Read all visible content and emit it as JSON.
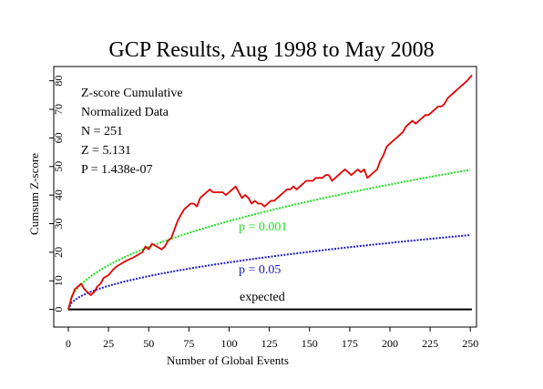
{
  "chart_data": {
    "type": "line",
    "title": "GCP Results, Aug 1998 to May 2008",
    "xlabel": "Number of Global Events",
    "ylabel": "Cumsum Z-score",
    "xlim": [
      0,
      251
    ],
    "ylim": [
      -3,
      85
    ],
    "x_ticks": [
      "0",
      "25",
      "50",
      "75",
      "100",
      "125",
      "150",
      "175",
      "200",
      "225",
      "250"
    ],
    "y_ticks": [
      "0",
      "10",
      "20",
      "30",
      "40",
      "50",
      "60",
      "70",
      "80"
    ],
    "grid": false,
    "stats": [
      "Z-score Cumulative",
      "Normalized Data",
      "N = 251",
      "Z = 5.131",
      "P = 1.438e-07"
    ],
    "annotations": {
      "p001": "p = 0.001",
      "p05": "p = 0.05",
      "expected": "expected"
    },
    "colors": {
      "cumulative": "#e00000",
      "p001": "#22dd22",
      "p05": "#1818c8",
      "expected": "#000000"
    },
    "series": [
      {
        "style": "solid",
        "color": "#e00000",
        "points": [
          [
            0,
            0
          ],
          [
            2,
            4
          ],
          [
            4,
            7
          ],
          [
            6,
            8
          ],
          [
            8,
            9
          ],
          [
            10,
            7
          ],
          [
            12,
            6
          ],
          [
            14,
            5
          ],
          [
            16,
            6
          ],
          [
            18,
            8
          ],
          [
            20,
            9
          ],
          [
            22,
            11
          ],
          [
            25,
            12
          ],
          [
            28,
            14
          ],
          [
            30,
            15
          ],
          [
            33,
            16
          ],
          [
            36,
            17
          ],
          [
            40,
            18
          ],
          [
            43,
            19
          ],
          [
            46,
            20
          ],
          [
            48,
            22
          ],
          [
            50,
            21
          ],
          [
            52,
            23
          ],
          [
            55,
            22
          ],
          [
            58,
            21
          ],
          [
            60,
            22
          ],
          [
            62,
            24
          ],
          [
            64,
            25
          ],
          [
            66,
            28
          ],
          [
            68,
            31
          ],
          [
            70,
            33
          ],
          [
            72,
            35
          ],
          [
            74,
            36
          ],
          [
            76,
            37
          ],
          [
            78,
            37
          ],
          [
            80,
            36
          ],
          [
            82,
            39
          ],
          [
            84,
            40
          ],
          [
            86,
            41
          ],
          [
            88,
            42
          ],
          [
            90,
            41
          ],
          [
            92,
            41
          ],
          [
            94,
            41
          ],
          [
            96,
            41
          ],
          [
            98,
            40
          ],
          [
            100,
            41
          ],
          [
            102,
            42
          ],
          [
            104,
            43
          ],
          [
            106,
            41
          ],
          [
            108,
            39
          ],
          [
            110,
            40
          ],
          [
            112,
            39
          ],
          [
            114,
            37
          ],
          [
            116,
            38
          ],
          [
            118,
            37
          ],
          [
            120,
            37
          ],
          [
            122,
            36
          ],
          [
            124,
            37
          ],
          [
            126,
            38
          ],
          [
            128,
            38
          ],
          [
            130,
            39
          ],
          [
            132,
            40
          ],
          [
            134,
            41
          ],
          [
            136,
            42
          ],
          [
            138,
            42
          ],
          [
            140,
            43
          ],
          [
            142,
            42
          ],
          [
            144,
            43
          ],
          [
            146,
            44
          ],
          [
            148,
            45
          ],
          [
            150,
            45
          ],
          [
            152,
            45
          ],
          [
            154,
            46
          ],
          [
            156,
            46
          ],
          [
            158,
            46
          ],
          [
            160,
            47
          ],
          [
            162,
            47
          ],
          [
            164,
            45
          ],
          [
            166,
            46
          ],
          [
            168,
            47
          ],
          [
            170,
            48
          ],
          [
            172,
            49
          ],
          [
            174,
            48
          ],
          [
            176,
            47
          ],
          [
            178,
            48
          ],
          [
            180,
            49
          ],
          [
            182,
            48
          ],
          [
            184,
            49
          ],
          [
            186,
            46
          ],
          [
            188,
            47
          ],
          [
            190,
            48
          ],
          [
            192,
            49
          ],
          [
            194,
            52
          ],
          [
            196,
            54
          ],
          [
            198,
            57
          ],
          [
            200,
            58
          ],
          [
            202,
            59
          ],
          [
            204,
            60
          ],
          [
            206,
            61
          ],
          [
            208,
            62
          ],
          [
            210,
            64
          ],
          [
            212,
            65
          ],
          [
            214,
            66
          ],
          [
            216,
            65
          ],
          [
            218,
            66
          ],
          [
            220,
            67
          ],
          [
            222,
            68
          ],
          [
            224,
            68
          ],
          [
            226,
            69
          ],
          [
            228,
            70
          ],
          [
            230,
            71
          ],
          [
            232,
            71
          ],
          [
            234,
            72
          ],
          [
            236,
            74
          ],
          [
            238,
            75
          ],
          [
            240,
            76
          ],
          [
            242,
            77
          ],
          [
            244,
            78
          ],
          [
            246,
            79
          ],
          [
            248,
            80
          ],
          [
            251,
            82
          ]
        ]
      },
      {
        "name": "p = 0.001",
        "style": "dotted",
        "color": "#22dd22",
        "formula": "3.09*sqrt(N)"
      },
      {
        "name": "p = 0.05",
        "style": "dotted",
        "color": "#1818c8",
        "formula": "1.645*sqrt(N)"
      },
      {
        "name": "expected",
        "style": "solid",
        "color": "#000000",
        "formula": "0"
      }
    ]
  }
}
